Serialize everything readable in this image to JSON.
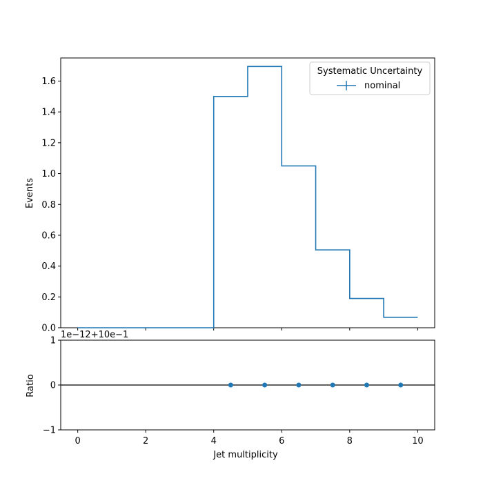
{
  "chart_data": [
    {
      "type": "step",
      "xlim": [
        -0.5,
        10.5
      ],
      "ylim": [
        0,
        1.75
      ],
      "ylabel": "Events",
      "yticks": [
        0.0,
        0.2,
        0.4,
        0.6,
        0.8,
        1.0,
        1.2,
        1.4,
        1.6
      ],
      "ytick_labels": [
        "0.0",
        "0.2",
        "0.4",
        "0.6",
        "0.8",
        "1.0",
        "1.2",
        "1.4",
        "1.6"
      ],
      "bin_edges": [
        0,
        1,
        2,
        3,
        4,
        5,
        6,
        7,
        8,
        9,
        10
      ],
      "series": [
        {
          "name": "nominal",
          "color": "#1f77b4",
          "values": [
            0,
            0,
            0,
            0,
            1.5,
            1.695,
            1.05,
            0.505,
            0.19,
            0.068
          ]
        }
      ],
      "legend": {
        "title": "Systematic Uncertainty",
        "position": "top-right"
      }
    },
    {
      "type": "scatter",
      "xlim": [
        -0.5,
        10.5
      ],
      "ylim": [
        -1,
        1
      ],
      "xlabel": "Jet multiplicity",
      "ylabel": "Ratio",
      "offset_text": "1e−12+10e−1",
      "yticks": [
        -1,
        0,
        1
      ],
      "ytick_labels": [
        "−1",
        "0",
        "1"
      ],
      "xticks": [
        0,
        2,
        4,
        6,
        8,
        10
      ],
      "xtick_labels": [
        "0",
        "2",
        "4",
        "6",
        "8",
        "10"
      ],
      "reference_line": 0,
      "color": "#1f77b4",
      "x": [
        4.5,
        5.5,
        6.5,
        7.5,
        8.5,
        9.5
      ],
      "y": [
        0,
        0,
        0,
        0,
        0,
        0
      ]
    }
  ]
}
